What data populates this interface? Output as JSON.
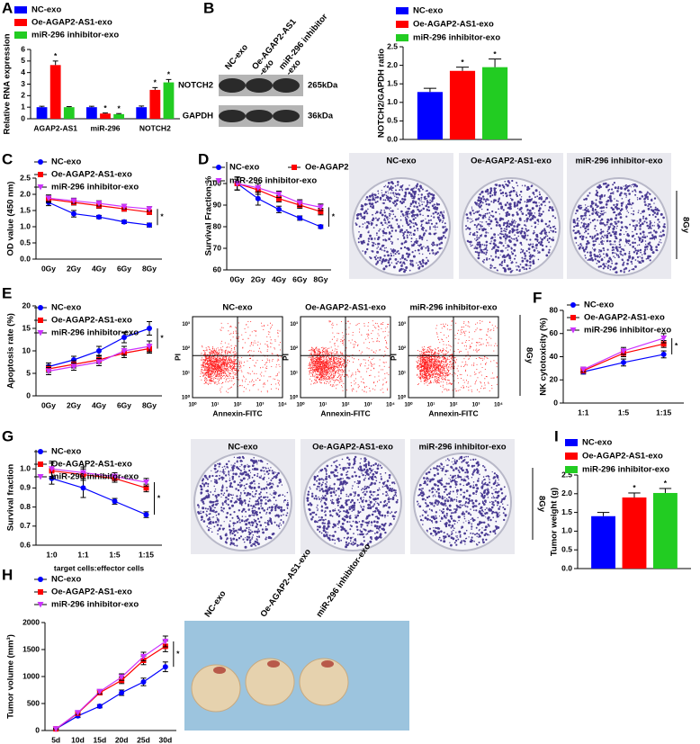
{
  "chart_data": [
    {
      "type": "bar",
      "panel": "A",
      "ylabel": "Relative RNA expression",
      "categories": [
        "AGAP2-AS1",
        "miR-296",
        "NOTCH2"
      ],
      "ylim": [
        0,
        6
      ],
      "yticks": [
        0,
        1,
        2,
        3,
        4,
        5,
        6
      ],
      "significance": "*",
      "series": [
        {
          "name": "NC-exo",
          "color": "#0000ff",
          "values": [
            1,
            1,
            1
          ],
          "errors": [
            0.08,
            0.08,
            0.1
          ],
          "significant": [
            false,
            false,
            false
          ]
        },
        {
          "name": "Oe-AGAP2-AS1-exo",
          "color": "#ff0000",
          "values": [
            4.65,
            0.45,
            2.5
          ],
          "errors": [
            0.35,
            0.05,
            0.2
          ],
          "significant": [
            true,
            true,
            true
          ]
        },
        {
          "name": "miR-296 inhibitor-exo",
          "color": "#22cc22",
          "values": [
            1,
            0.4,
            3.15
          ],
          "errors": [
            0.05,
            0.05,
            0.25
          ],
          "significant": [
            false,
            true,
            true
          ]
        }
      ]
    },
    {
      "type": "bar",
      "ylabel": "NOTCH2/GAPDH ratio",
      "categories": [
        null
      ],
      "ylim": [
        0,
        2.5
      ],
      "yticks": [
        {
          "value": 0,
          "label": "0.0"
        },
        {
          "value": 0.5,
          "label": "0.5"
        },
        {
          "value": 1,
          "label": "1.0"
        },
        {
          "value": 1.5,
          "label": "1.5"
        },
        {
          "value": 2,
          "label": "2.0"
        },
        {
          "value": 2.5,
          "label": "2.5"
        }
      ],
      "significance": "*",
      "series": [
        {
          "name": "NC-exo",
          "color": "#0000ff",
          "values": [
            1.28
          ],
          "errors": [
            0.1
          ],
          "significant": [
            false
          ]
        },
        {
          "name": "Oe-AGAP2-AS1-exo",
          "color": "#ff0000",
          "values": [
            1.85
          ],
          "errors": [
            0.1
          ],
          "significant": [
            true
          ]
        },
        {
          "name": "miR-296 inhibitor-exo",
          "color": "#22cc22",
          "values": [
            1.95
          ],
          "errors": [
            0.22
          ],
          "significant": [
            true
          ]
        }
      ]
    },
    {
      "type": "line",
      "panel": "C",
      "ylabel": "OD value (450 nm)",
      "categories": [
        "0Gy",
        "2Gy",
        "4Gy",
        "6Gy",
        "8Gy"
      ],
      "ylim": [
        0,
        2.5
      ],
      "yticks": [
        {
          "value": 0,
          "label": "0.0"
        },
        {
          "value": 0.5,
          "label": "0.5"
        },
        {
          "value": 1,
          "label": "1.0"
        },
        {
          "value": 1.5,
          "label": "1.5"
        },
        {
          "value": 2,
          "label": "2.0"
        },
        {
          "value": 2.5,
          "label": "2.5"
        }
      ],
      "significance": "*",
      "series": [
        {
          "name": "NC-exo",
          "color": "#0000ff",
          "marker": "circle",
          "values": [
            1.75,
            1.4,
            1.3,
            1.15,
            1.05
          ],
          "errors": [
            0.1,
            0.1,
            0.05,
            0.05,
            0.06
          ]
        },
        {
          "name": "Oe-AGAP2-AS1-exo",
          "color": "#ff0000",
          "marker": "square",
          "values": [
            1.85,
            1.75,
            1.65,
            1.55,
            1.45
          ],
          "errors": [
            0.1,
            0.08,
            0.08,
            0.07,
            0.07
          ]
        },
        {
          "name": "miR-296 inhibitor-exo",
          "color": "#cc33ff",
          "marker": "triangle",
          "values": [
            1.88,
            1.8,
            1.72,
            1.62,
            1.55
          ],
          "errors": [
            0.1,
            0.08,
            0.08,
            0.07,
            0.07
          ]
        }
      ]
    },
    {
      "type": "line",
      "panel": "D",
      "ylabel": "Survival Fraction:%",
      "categories": [
        "0Gy",
        "2Gy",
        "4Gy",
        "6Gy",
        "8Gy"
      ],
      "ylim": [
        60,
        110
      ],
      "yticks": [
        60,
        70,
        80,
        90,
        100
      ],
      "significance": "*",
      "series": [
        {
          "name": "NC-exo",
          "color": "#0000ff",
          "marker": "circle",
          "values": [
            100,
            93,
            88,
            84,
            80
          ],
          "errors": [
            3,
            3,
            1.5,
            1,
            0.8
          ]
        },
        {
          "name": "Oe-AGAP2-AS1-exo",
          "color": "#ff0000",
          "marker": "square",
          "values": [
            100,
            97,
            93,
            90,
            87
          ],
          "errors": [
            3,
            2,
            1.5,
            1.5,
            1.5
          ]
        },
        {
          "name": "miR-296 inhibitor-exo",
          "color": "#cc33ff",
          "marker": "triangle",
          "values": [
            100,
            98,
            95,
            91,
            89
          ],
          "errors": [
            3,
            2,
            1.5,
            1.5,
            1.5
          ]
        }
      ]
    },
    {
      "type": "line",
      "panel": "E",
      "ylabel": "Apoptosis rate (%)",
      "categories": [
        "0Gy",
        "2Gy",
        "4Gy",
        "6Gy",
        "8Gy"
      ],
      "ylim": [
        0,
        20
      ],
      "yticks": [
        0,
        5,
        10,
        15,
        20
      ],
      "significance": "*",
      "series": [
        {
          "name": "NC-exo",
          "color": "#0000ff",
          "marker": "circle",
          "values": [
            6.5,
            8,
            10,
            13,
            15
          ],
          "errors": [
            0.8,
            0.8,
            1,
            1.2,
            1.5
          ]
        },
        {
          "name": "Oe-AGAP2-AS1-exo",
          "color": "#ff0000",
          "marker": "square",
          "values": [
            6,
            7,
            8,
            9.5,
            10.5
          ],
          "errors": [
            0.8,
            0.8,
            0.8,
            1,
            1
          ]
        },
        {
          "name": "miR-296 inhibitor-exo",
          "color": "#cc33ff",
          "marker": "triangle",
          "values": [
            5.5,
            6.5,
            7.5,
            10,
            11
          ],
          "errors": [
            0.8,
            0.8,
            0.8,
            1,
            1.2
          ]
        }
      ]
    },
    {
      "type": "line",
      "panel": "F",
      "ylabel": "NK cytotoxicity (%)",
      "categories": [
        "1:1",
        "1:5",
        "1:15"
      ],
      "ylim": [
        0,
        80
      ],
      "yticks": [
        0,
        20,
        40,
        60,
        80
      ],
      "significance": "*",
      "series": [
        {
          "name": "NC-exo",
          "color": "#0000ff",
          "marker": "circle",
          "values": [
            27,
            35,
            42
          ],
          "errors": [
            2,
            3,
            3
          ]
        },
        {
          "name": "Oe-AGAP2-AS1-exo",
          "color": "#ff0000",
          "marker": "square",
          "values": [
            28,
            43,
            51
          ],
          "errors": [
            2,
            3,
            3
          ]
        },
        {
          "name": "miR-296 inhibitor-exo",
          "color": "#cc33ff",
          "marker": "triangle",
          "values": [
            29,
            45,
            56
          ],
          "errors": [
            2,
            3,
            4
          ]
        }
      ]
    },
    {
      "type": "line",
      "panel": "G",
      "ylabel": "Survival fraction",
      "xlabel": "target cells:effector cells",
      "categories": [
        "1:0",
        "1:1",
        "1:5",
        "1:15"
      ],
      "ylim": [
        0.6,
        1.1
      ],
      "yticks": [
        {
          "value": 0.6,
          "label": "0.6"
        },
        {
          "value": 0.7,
          "label": "0.7"
        },
        {
          "value": 0.8,
          "label": "0.8"
        },
        {
          "value": 0.9,
          "label": "0.9"
        },
        {
          "value": 1,
          "label": "1.0"
        }
      ],
      "significance": "*",
      "series": [
        {
          "name": "NC-exo",
          "color": "#0000ff",
          "marker": "circle",
          "values": [
            0.95,
            0.9,
            0.83,
            0.76
          ],
          "errors": [
            0.03,
            0.05,
            0.015,
            0.015
          ]
        },
        {
          "name": "Oe-AGAP2-AS1-exo",
          "color": "#ff0000",
          "marker": "square",
          "values": [
            0.99,
            0.97,
            0.95,
            0.9
          ],
          "errors": [
            0.04,
            0.03,
            0.02,
            0.02
          ]
        },
        {
          "name": "miR-296 inhibitor-exo",
          "color": "#cc33ff",
          "marker": "triangle",
          "values": [
            1,
            0.98,
            0.96,
            0.93
          ],
          "errors": [
            0.04,
            0.03,
            0.02,
            0.02
          ]
        }
      ]
    },
    {
      "type": "bar",
      "panel": "I",
      "ylabel": "Tumor weight (g)",
      "categories": [
        null
      ],
      "ylim": [
        0,
        2.5
      ],
      "yticks": [
        {
          "value": 0,
          "label": "0.0"
        },
        {
          "value": 0.5,
          "label": "0.5"
        },
        {
          "value": 1,
          "label": "1.0"
        },
        {
          "value": 1.5,
          "label": "1.5"
        },
        {
          "value": 2,
          "label": "2.0"
        },
        {
          "value": 2.5,
          "label": "2.5"
        }
      ],
      "significance": "*",
      "series": [
        {
          "name": "NC-exo",
          "color": "#0000ff",
          "values": [
            1.4
          ],
          "errors": [
            0.1
          ],
          "significant": [
            false
          ]
        },
        {
          "name": "Oe-AGAP2-AS1-exo",
          "color": "#ff0000",
          "values": [
            1.9
          ],
          "errors": [
            0.12
          ],
          "significant": [
            true
          ]
        },
        {
          "name": "miR-296 inhibitor-exo",
          "color": "#22cc22",
          "values": [
            2.02
          ],
          "errors": [
            0.12
          ],
          "significant": [
            true
          ]
        }
      ]
    },
    {
      "type": "line",
      "panel": "H",
      "ylabel": "Tumor volume (mm³)",
      "categories": [
        "5d",
        "10d",
        "15d",
        "20d",
        "25d",
        "30d"
      ],
      "ylim": [
        0,
        2000
      ],
      "yticks": [
        0,
        500,
        1000,
        1500,
        2000
      ],
      "significance": "*",
      "series": [
        {
          "name": "NC-exo",
          "color": "#0000ff",
          "marker": "circle",
          "values": [
            30,
            270,
            450,
            700,
            900,
            1180
          ],
          "errors": [
            10,
            30,
            30,
            50,
            70,
            90
          ]
        },
        {
          "name": "Oe-AGAP2-AS1-exo",
          "color": "#ff0000",
          "marker": "square",
          "values": [
            30,
            320,
            700,
            930,
            1300,
            1560
          ],
          "errors": [
            10,
            30,
            40,
            60,
            80,
            100
          ]
        },
        {
          "name": "miR-296 inhibitor-exo",
          "color": "#cc33ff",
          "marker": "triangle",
          "values": [
            30,
            330,
            720,
            990,
            1370,
            1650
          ],
          "errors": [
            10,
            30,
            40,
            60,
            80,
            100
          ]
        }
      ]
    }
  ],
  "blot": {
    "panel": "B",
    "lanes": [
      [
        "NC-exo"
      ],
      [
        "Oe-AGAP2-AS1",
        "-exo"
      ],
      [
        "miR-296 inhibitor",
        "-exo"
      ]
    ],
    "bands": [
      "NOTCH2",
      "GAPDH"
    ],
    "sizes": [
      "265kDa",
      "36kDa"
    ]
  },
  "colonies_D": {
    "titles": [
      "NC-exo",
      "Oe-AGAP2-AS1-exo",
      "miR-296 inhibitor-exo"
    ],
    "dose": "8Gy"
  },
  "flow_E": {
    "titles": [
      "NC-exo",
      "Oe-AGAP2-AS1-exo",
      "miR-296 inhibitor-exo"
    ],
    "ylabel": "PI",
    "xlabel": "Annexin-FITC",
    "ticks": [
      "10⁰",
      "10¹",
      "10²",
      "10³",
      "10⁴"
    ],
    "dose": "8Gy"
  },
  "colonies_G": {
    "titles": [
      "NC-exo",
      "Oe-AGAP2-AS1-exo",
      "miR-296 inhibitor-exo"
    ],
    "dose": "8Gy"
  },
  "tumors_H": {
    "titles": [
      "NC-exo",
      "Oe-AGAP2-AS1-exo",
      "miR-296 inhibitor-exo"
    ]
  }
}
